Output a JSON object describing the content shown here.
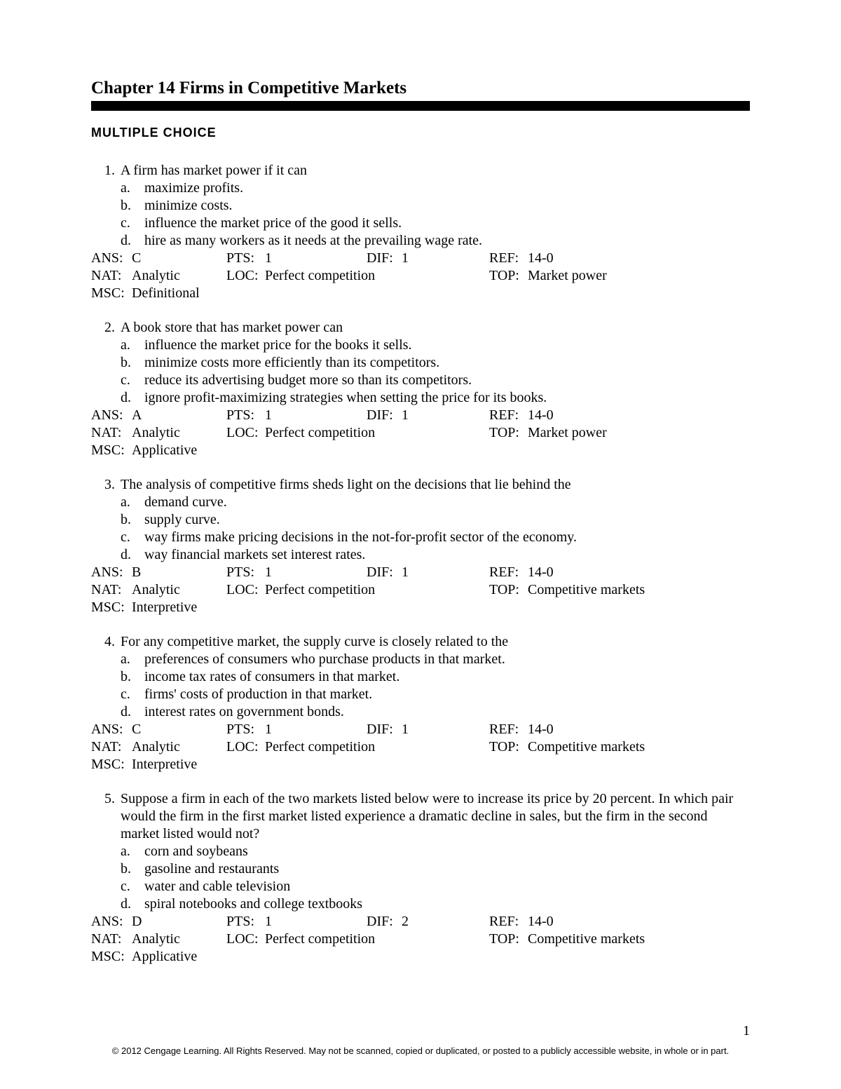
{
  "chapter_title": "Chapter 14 Firms in Competitive Markets",
  "section_title": "MULTIPLE CHOICE",
  "page_number": "1",
  "copyright": "© 2012 Cengage Learning. All Rights Reserved. May not be scanned, copied or duplicated, or posted to a publicly accessible website, in whole or in part.",
  "colors": {
    "text": "#000000",
    "background": "#ffffff",
    "bar": "#000000"
  },
  "typography": {
    "body_fontsize": 20,
    "title_fontsize": 25,
    "section_fontsize": 18,
    "footer_fontsize": 13
  },
  "labels": {
    "ans": "ANS:",
    "pts": "PTS:",
    "dif": "DIF:",
    "ref": "REF:",
    "nat": "NAT:",
    "loc": "LOC:",
    "top": "TOP:",
    "msc": "MSC:"
  },
  "questions": [
    {
      "num": "1.",
      "text": "A firm has market power if it can",
      "choices": [
        {
          "letter": "a.",
          "text": "maximize profits."
        },
        {
          "letter": "b.",
          "text": "minimize costs."
        },
        {
          "letter": "c.",
          "text": "influence the market price of the good it sells."
        },
        {
          "letter": "d.",
          "text": "hire as many workers as it needs at the prevailing wage rate."
        }
      ],
      "ans": "C",
      "pts": "1",
      "dif": "1",
      "ref": "14-0",
      "nat": "Analytic",
      "loc": "Perfect competition",
      "top": "Market power",
      "msc": "Definitional"
    },
    {
      "num": "2.",
      "text": "A book store that has market power can",
      "choices": [
        {
          "letter": "a.",
          "text": "influence the market price for the books it sells."
        },
        {
          "letter": "b.",
          "text": "minimize costs more efficiently than its competitors."
        },
        {
          "letter": "c.",
          "text": "reduce its advertising budget more so than its competitors."
        },
        {
          "letter": "d.",
          "text": "ignore profit-maximizing strategies when setting the price for its books."
        }
      ],
      "ans": "A",
      "pts": "1",
      "dif": "1",
      "ref": "14-0",
      "nat": "Analytic",
      "loc": "Perfect competition",
      "top": "Market power",
      "msc": "Applicative"
    },
    {
      "num": "3.",
      "text": "The analysis of competitive firms sheds light on the decisions that lie behind the",
      "choices": [
        {
          "letter": "a.",
          "text": "demand curve."
        },
        {
          "letter": "b.",
          "text": "supply curve."
        },
        {
          "letter": "c.",
          "text": "way firms make pricing decisions in the not-for-profit sector of the economy."
        },
        {
          "letter": "d.",
          "text": "way financial markets set interest rates."
        }
      ],
      "ans": "B",
      "pts": "1",
      "dif": "1",
      "ref": "14-0",
      "nat": "Analytic",
      "loc": "Perfect competition",
      "top": "Competitive markets",
      "msc": "Interpretive"
    },
    {
      "num": "4.",
      "text": "For any competitive market, the supply curve is closely related to the",
      "choices": [
        {
          "letter": "a.",
          "text": "preferences of consumers who purchase products in that market."
        },
        {
          "letter": "b.",
          "text": "income tax rates of consumers in that market."
        },
        {
          "letter": "c.",
          "text": "firms' costs of production in that market."
        },
        {
          "letter": "d.",
          "text": "interest rates on government bonds."
        }
      ],
      "ans": "C",
      "pts": "1",
      "dif": "1",
      "ref": "14-0",
      "nat": "Analytic",
      "loc": "Perfect competition",
      "top": "Competitive markets",
      "msc": "Interpretive"
    },
    {
      "num": "5.",
      "text": "Suppose a firm in each of the two markets listed below were to increase its price by 20 percent.  In which pair would the firm in the first market listed experience a dramatic decline in sales, but the firm in the second market listed would not?",
      "choices": [
        {
          "letter": "a.",
          "text": "corn and soybeans"
        },
        {
          "letter": "b.",
          "text": "gasoline and restaurants"
        },
        {
          "letter": "c.",
          "text": "water and cable television"
        },
        {
          "letter": "d.",
          "text": "spiral notebooks and college textbooks"
        }
      ],
      "ans": "D",
      "pts": "1",
      "dif": "2",
      "ref": "14-0",
      "nat": "Analytic",
      "loc": "Perfect competition",
      "top": "Competitive markets",
      "msc": "Applicative"
    }
  ]
}
